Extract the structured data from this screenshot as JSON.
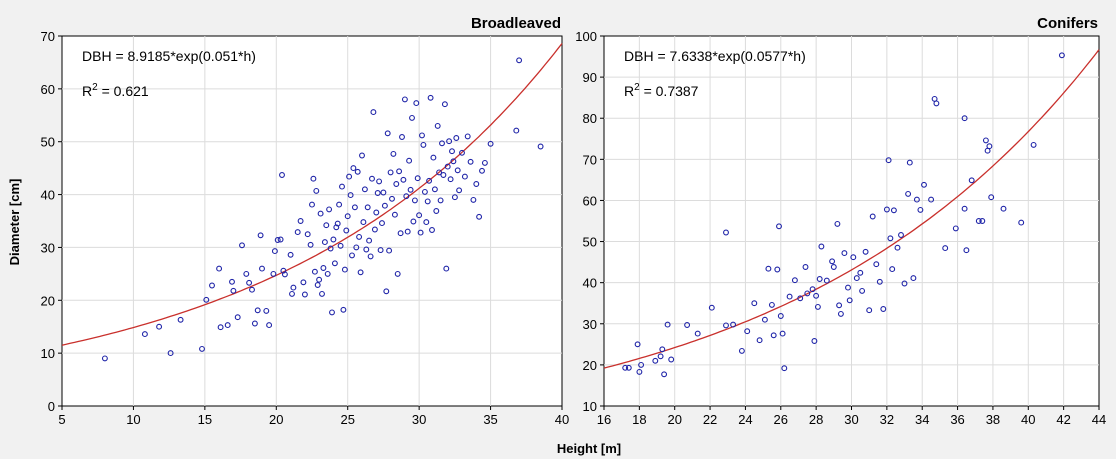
{
  "chart_data": [
    {
      "type": "scatter",
      "title": "Broadleaved",
      "xlim": [
        5,
        40
      ],
      "ylim": [
        0,
        70
      ],
      "xticks": [
        "5",
        "10",
        "15",
        "20",
        "25",
        "30",
        "35",
        "40"
      ],
      "yticks": [
        "0",
        "10",
        "20",
        "30",
        "40",
        "50",
        "60",
        "70"
      ],
      "grid": true,
      "equation": "DBH = 8.9185*exp(0.051*h)",
      "r2_label": "R",
      "r2_sup": "2",
      "r2_value": " = 0.621",
      "fit": {
        "type": "exponential",
        "a": 8.9185,
        "b": 0.051
      },
      "points": [
        [
          8,
          9
        ],
        [
          10.8,
          13.6
        ],
        [
          11.8,
          15
        ],
        [
          12.6,
          10
        ],
        [
          13.3,
          16.3
        ],
        [
          14.8,
          10.8
        ],
        [
          15.1,
          20.1
        ],
        [
          15.5,
          22.8
        ],
        [
          16,
          26
        ],
        [
          16.1,
          14.9
        ],
        [
          16.6,
          15.3
        ],
        [
          16.9,
          23.5
        ],
        [
          17,
          21.8
        ],
        [
          17.3,
          16.8
        ],
        [
          17.6,
          30.4
        ],
        [
          17.9,
          25
        ],
        [
          18.1,
          23.3
        ],
        [
          18.3,
          22
        ],
        [
          18.5,
          15.6
        ],
        [
          18.7,
          18.1
        ],
        [
          18.9,
          32.3
        ],
        [
          19,
          26
        ],
        [
          19.3,
          18
        ],
        [
          19.5,
          15.3
        ],
        [
          19.8,
          25
        ],
        [
          19.9,
          29.3
        ],
        [
          20.1,
          31.4
        ],
        [
          20.3,
          31.5
        ],
        [
          20.4,
          43.7
        ],
        [
          20.5,
          25.6
        ],
        [
          20.6,
          24.9
        ],
        [
          21,
          28.6
        ],
        [
          21.1,
          21.2
        ],
        [
          21.2,
          22.4
        ],
        [
          21.5,
          32.9
        ],
        [
          21.7,
          35
        ],
        [
          21.9,
          23.4
        ],
        [
          22,
          21.1
        ],
        [
          22.2,
          32.5
        ],
        [
          22.4,
          30.5
        ],
        [
          22.5,
          38.1
        ],
        [
          22.6,
          43
        ],
        [
          22.7,
          25.4
        ],
        [
          22.8,
          40.7
        ],
        [
          22.9,
          22.9
        ],
        [
          23,
          23.9
        ],
        [
          23.1,
          36.4
        ],
        [
          23.2,
          21.2
        ],
        [
          23.3,
          26.1
        ],
        [
          23.4,
          31
        ],
        [
          23.5,
          34.2
        ],
        [
          23.6,
          25
        ],
        [
          23.7,
          37.2
        ],
        [
          23.8,
          29.8
        ],
        [
          23.9,
          17.7
        ],
        [
          24,
          31.5
        ],
        [
          24.1,
          27
        ],
        [
          24.2,
          33.8
        ],
        [
          24.3,
          34.5
        ],
        [
          24.4,
          38.1
        ],
        [
          24.5,
          30.3
        ],
        [
          24.6,
          41.5
        ],
        [
          24.7,
          18.2
        ],
        [
          24.8,
          25.8
        ],
        [
          24.9,
          33.2
        ],
        [
          25,
          35.9
        ],
        [
          25.1,
          43.4
        ],
        [
          25.2,
          39.9
        ],
        [
          25.3,
          28.5
        ],
        [
          25.4,
          45
        ],
        [
          25.5,
          37.6
        ],
        [
          25.6,
          30
        ],
        [
          25.7,
          44.3
        ],
        [
          25.8,
          32
        ],
        [
          25.9,
          25.3
        ],
        [
          26,
          47.4
        ],
        [
          26.1,
          34.8
        ],
        [
          26.2,
          41
        ],
        [
          26.3,
          29.6
        ],
        [
          26.4,
          37.6
        ],
        [
          26.5,
          31.3
        ],
        [
          26.6,
          28.3
        ],
        [
          26.7,
          43
        ],
        [
          26.8,
          55.6
        ],
        [
          26.9,
          33.4
        ],
        [
          27,
          36.6
        ],
        [
          27.1,
          40.3
        ],
        [
          27.2,
          42.5
        ],
        [
          27.3,
          29.5
        ],
        [
          27.4,
          34.6
        ],
        [
          27.5,
          40.4
        ],
        [
          27.6,
          37.9
        ],
        [
          27.7,
          21.7
        ],
        [
          27.8,
          51.6
        ],
        [
          27.9,
          29.4
        ],
        [
          28,
          44.2
        ],
        [
          28.1,
          39.2
        ],
        [
          28.2,
          47.7
        ],
        [
          28.3,
          36.2
        ],
        [
          28.4,
          42
        ],
        [
          28.5,
          25
        ],
        [
          28.6,
          44.4
        ],
        [
          28.7,
          32.7
        ],
        [
          28.8,
          50.9
        ],
        [
          28.9,
          42.8
        ],
        [
          29,
          58
        ],
        [
          29.1,
          39.7
        ],
        [
          29.2,
          33
        ],
        [
          29.3,
          46.4
        ],
        [
          29.4,
          40.9
        ],
        [
          29.5,
          54.5
        ],
        [
          29.6,
          34.9
        ],
        [
          29.7,
          38.9
        ],
        [
          29.8,
          57.3
        ],
        [
          29.9,
          43.1
        ],
        [
          30,
          36.1
        ],
        [
          30.1,
          32.8
        ],
        [
          30.2,
          51.2
        ],
        [
          30.3,
          49.4
        ],
        [
          30.4,
          40.5
        ],
        [
          30.5,
          34.8
        ],
        [
          30.6,
          38.7
        ],
        [
          30.7,
          42.6
        ],
        [
          30.8,
          58.3
        ],
        [
          30.9,
          33.3
        ],
        [
          31,
          47
        ],
        [
          31.1,
          41
        ],
        [
          31.2,
          36.9
        ],
        [
          31.3,
          53
        ],
        [
          31.4,
          44.2
        ],
        [
          31.5,
          38.9
        ],
        [
          31.6,
          49.7
        ],
        [
          31.7,
          43.7
        ],
        [
          31.8,
          57.1
        ],
        [
          31.9,
          26
        ],
        [
          32,
          45.3
        ],
        [
          32.1,
          50.1
        ],
        [
          32.2,
          42.9
        ],
        [
          32.3,
          48.2
        ],
        [
          32.4,
          46.3
        ],
        [
          32.5,
          39.5
        ],
        [
          32.6,
          50.7
        ],
        [
          32.7,
          44.6
        ],
        [
          32.8,
          40.8
        ],
        [
          33,
          47.9
        ],
        [
          33.2,
          43.4
        ],
        [
          33.4,
          51
        ],
        [
          33.6,
          46.2
        ],
        [
          33.8,
          39
        ],
        [
          34,
          42
        ],
        [
          34.2,
          35.8
        ],
        [
          34.4,
          44.5
        ],
        [
          34.6,
          46
        ],
        [
          35,
          49.6
        ],
        [
          36.8,
          52.1
        ],
        [
          37,
          65.4
        ],
        [
          38.5,
          49.1
        ]
      ]
    },
    {
      "type": "scatter",
      "title": "Conifers",
      "xlim": [
        16,
        44
      ],
      "ylim": [
        10,
        100
      ],
      "xticks": [
        "16",
        "18",
        "20",
        "22",
        "24",
        "26",
        "28",
        "30",
        "32",
        "34",
        "36",
        "38",
        "40",
        "42",
        "44"
      ],
      "yticks": [
        "10",
        "20",
        "30",
        "40",
        "50",
        "60",
        "70",
        "80",
        "90",
        "100"
      ],
      "grid": true,
      "equation": "DBH = 7.6338*exp(0.0577*h)",
      "r2_label": "R",
      "r2_sup": "2",
      "r2_value": " = 0.7387",
      "fit": {
        "type": "exponential",
        "a": 7.6338,
        "b": 0.0577
      },
      "points": [
        [
          17.2,
          19.3
        ],
        [
          17.4,
          19.3
        ],
        [
          17.9,
          25
        ],
        [
          18,
          18.3
        ],
        [
          18.1,
          20
        ],
        [
          18.9,
          21
        ],
        [
          19.2,
          22.1
        ],
        [
          19.3,
          23.8
        ],
        [
          19.4,
          17.7
        ],
        [
          19.6,
          29.8
        ],
        [
          19.8,
          21.3
        ],
        [
          20.7,
          29.7
        ],
        [
          21.3,
          27.6
        ],
        [
          22.1,
          33.9
        ],
        [
          22.9,
          52.2
        ],
        [
          22.9,
          29.6
        ],
        [
          23.3,
          29.8
        ],
        [
          23.8,
          23.4
        ],
        [
          24.1,
          28.2
        ],
        [
          24.5,
          35
        ],
        [
          24.8,
          26
        ],
        [
          25.1,
          31
        ],
        [
          25.3,
          43.4
        ],
        [
          25.5,
          34.6
        ],
        [
          25.6,
          27.2
        ],
        [
          25.8,
          43.2
        ],
        [
          25.9,
          53.7
        ],
        [
          26,
          31.9
        ],
        [
          26.1,
          27.6
        ],
        [
          26.2,
          19.2
        ],
        [
          26.5,
          36.6
        ],
        [
          26.8,
          40.6
        ],
        [
          27.1,
          36.2
        ],
        [
          27.4,
          43.8
        ],
        [
          27.5,
          37.4
        ],
        [
          27.8,
          38.4
        ],
        [
          27.9,
          25.8
        ],
        [
          28,
          36.8
        ],
        [
          28.1,
          34.1
        ],
        [
          28.2,
          40.9
        ],
        [
          28.3,
          48.8
        ],
        [
          28.6,
          40.5
        ],
        [
          28.9,
          45.2
        ],
        [
          29,
          43.8
        ],
        [
          29.2,
          54.3
        ],
        [
          29.3,
          34.5
        ],
        [
          29.4,
          32.4
        ],
        [
          29.6,
          47.2
        ],
        [
          29.8,
          38.8
        ],
        [
          29.9,
          35.7
        ],
        [
          30.1,
          46.2
        ],
        [
          30.3,
          41.1
        ],
        [
          30.5,
          42.4
        ],
        [
          30.6,
          38
        ],
        [
          30.8,
          47.5
        ],
        [
          31,
          33.3
        ],
        [
          31.2,
          56.1
        ],
        [
          31.4,
          44.5
        ],
        [
          31.6,
          40.2
        ],
        [
          31.8,
          33.6
        ],
        [
          32,
          57.8
        ],
        [
          32.1,
          69.8
        ],
        [
          32.2,
          50.8
        ],
        [
          32.3,
          43.3
        ],
        [
          32.4,
          57.6
        ],
        [
          32.6,
          48.5
        ],
        [
          32.8,
          51.6
        ],
        [
          33,
          39.8
        ],
        [
          33.2,
          61.6
        ],
        [
          33.3,
          69.2
        ],
        [
          33.5,
          41.1
        ],
        [
          33.7,
          60.2
        ],
        [
          33.9,
          57.7
        ],
        [
          34.1,
          63.8
        ],
        [
          34.5,
          60.2
        ],
        [
          34.7,
          84.7
        ],
        [
          34.8,
          83.6
        ],
        [
          35.3,
          48.4
        ],
        [
          35.9,
          53.2
        ],
        [
          36.4,
          80
        ],
        [
          36.4,
          58
        ],
        [
          36.5,
          47.9
        ],
        [
          36.8,
          64.9
        ],
        [
          37.2,
          55
        ],
        [
          37.4,
          55
        ],
        [
          37.6,
          74.6
        ],
        [
          37.7,
          72.1
        ],
        [
          37.8,
          73.2
        ],
        [
          37.9,
          60.8
        ],
        [
          38.6,
          58
        ],
        [
          39.6,
          54.6
        ],
        [
          40.3,
          73.5
        ],
        [
          41.9,
          95.3
        ]
      ]
    }
  ],
  "ylabel": "Diameter [cm]",
  "xlabel": "Height [m]"
}
